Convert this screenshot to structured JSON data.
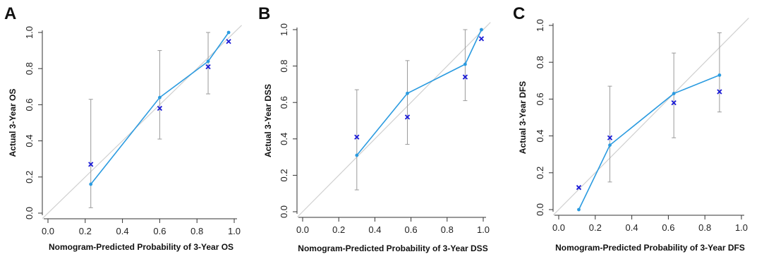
{
  "chart_data": [
    {
      "type": "scatter",
      "panel_label": "A",
      "xlabel": "Nomogram-Predicted Probability of 3-Year OS",
      "ylabel": "Actual 3-Year OS",
      "xlim": [
        0.0,
        1.0
      ],
      "ylim": [
        0.0,
        1.0
      ],
      "xticks": [
        "0.0",
        "0.2",
        "0.4",
        "0.6",
        "0.8",
        "1.0"
      ],
      "yticks": [
        "0.0",
        "0.2",
        "0.4",
        "0.6",
        "0.8",
        "1.0"
      ],
      "grid": false,
      "series": [
        {
          "kind": "reference-diagonal",
          "x": [
            0,
            1
          ],
          "y": [
            0,
            1
          ],
          "color": "#d0d0d0"
        },
        {
          "kind": "calibration-line",
          "color": "#2b9be0",
          "x": [
            0.23,
            0.6,
            0.86,
            0.97
          ],
          "y": [
            0.16,
            0.64,
            0.84,
            1.0
          ],
          "ci_low": [
            0.03,
            0.41,
            0.66,
            null
          ],
          "ci_high": [
            0.63,
            0.9,
            1.0,
            null
          ]
        },
        {
          "kind": "corrected-points",
          "marker": "x",
          "color": "#1a1ad6",
          "x": [
            0.23,
            0.6,
            0.86,
            0.97
          ],
          "y": [
            0.27,
            0.58,
            0.81,
            0.95
          ]
        }
      ]
    },
    {
      "type": "scatter",
      "panel_label": "B",
      "xlabel": "Nomogram-Predicted Probability of 3-Year DSS",
      "ylabel": "Actual 3-Year DSS",
      "xlim": [
        0.0,
        1.0
      ],
      "ylim": [
        0.0,
        1.0
      ],
      "xticks": [
        "0.0",
        "0.2",
        "0.4",
        "0.6",
        "0.8",
        "1.0"
      ],
      "yticks": [
        "0.0",
        "0.2",
        "0.4",
        "0.6",
        "0.8",
        "1.0"
      ],
      "grid": false,
      "series": [
        {
          "kind": "reference-diagonal",
          "x": [
            0,
            1
          ],
          "y": [
            0,
            1
          ],
          "color": "#d0d0d0"
        },
        {
          "kind": "calibration-line",
          "color": "#2b9be0",
          "x": [
            0.3,
            0.58,
            0.9,
            0.99
          ],
          "y": [
            0.31,
            0.65,
            0.81,
            1.0
          ],
          "ci_low": [
            0.12,
            0.37,
            0.61,
            null
          ],
          "ci_high": [
            0.67,
            0.83,
            1.0,
            null
          ]
        },
        {
          "kind": "corrected-points",
          "marker": "x",
          "color": "#1a1ad6",
          "x": [
            0.3,
            0.58,
            0.9,
            0.99
          ],
          "y": [
            0.41,
            0.52,
            0.74,
            0.95
          ]
        }
      ]
    },
    {
      "type": "scatter",
      "panel_label": "C",
      "xlabel": "Nomogram-Predicted Probability of 3-Year DFS",
      "ylabel": "Actual 3-Year DFS",
      "xlim": [
        0.0,
        1.0
      ],
      "ylim": [
        0.0,
        1.0
      ],
      "xticks": [
        "0.0",
        "0.2",
        "0.4",
        "0.6",
        "0.8",
        "1.0"
      ],
      "yticks": [
        "0.0",
        "0.2",
        "0.4",
        "0.6",
        "0.8",
        "1.0"
      ],
      "grid": false,
      "series": [
        {
          "kind": "reference-diagonal",
          "x": [
            0,
            1
          ],
          "y": [
            0,
            1
          ],
          "color": "#d0d0d0"
        },
        {
          "kind": "calibration-line",
          "color": "#2b9be0",
          "x": [
            0.11,
            0.28,
            0.63,
            0.88
          ],
          "y": [
            0.0,
            0.35,
            0.63,
            0.73
          ],
          "ci_low": [
            null,
            0.15,
            0.39,
            0.53
          ],
          "ci_high": [
            null,
            0.67,
            0.85,
            0.96
          ]
        },
        {
          "kind": "corrected-points",
          "marker": "x",
          "color": "#1a1ad6",
          "x": [
            0.11,
            0.28,
            0.63,
            0.88
          ],
          "y": [
            0.12,
            0.39,
            0.58,
            0.64
          ]
        }
      ]
    }
  ]
}
